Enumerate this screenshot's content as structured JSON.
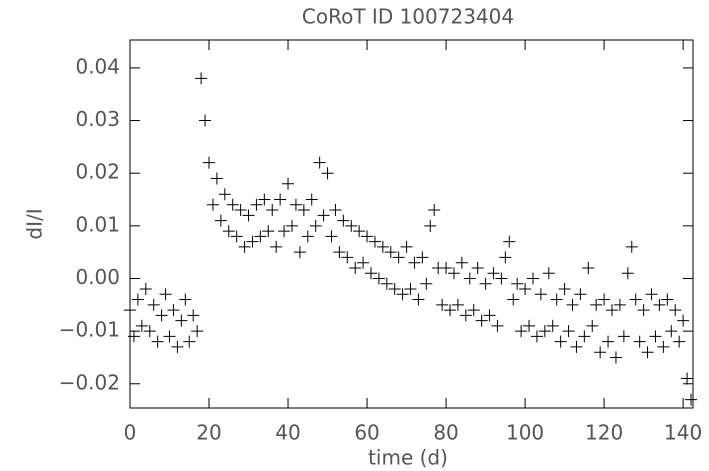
{
  "chart_data": {
    "type": "scatter",
    "title": "CoRoT ID 100723404",
    "x_label": "time (d)",
    "y_label": "dI/I",
    "color": "#000000",
    "x": [
      0,
      1,
      2,
      3,
      4,
      5,
      6,
      7,
      8,
      9,
      10,
      11,
      12,
      13,
      14,
      15,
      16,
      17,
      18,
      19,
      20,
      21,
      22,
      23,
      24,
      25,
      26,
      27,
      28,
      29,
      30,
      31,
      32,
      33,
      34,
      35,
      36,
      37,
      38,
      39,
      40,
      41,
      42,
      43,
      44,
      45,
      46,
      47,
      48,
      49,
      50,
      51,
      52,
      53,
      54,
      55,
      56,
      57,
      58,
      59,
      60,
      61,
      62,
      63,
      64,
      65,
      66,
      67,
      68,
      69,
      70,
      71,
      72,
      73,
      74,
      75,
      76,
      77,
      78,
      79,
      80,
      81,
      82,
      83,
      84,
      85,
      86,
      87,
      88,
      89,
      90,
      91,
      92,
      93,
      94,
      95,
      96,
      97,
      98,
      99,
      100,
      101,
      102,
      103,
      104,
      105,
      106,
      107,
      108,
      109,
      110,
      111,
      112,
      113,
      114,
      115,
      116,
      117,
      118,
      119,
      120,
      121,
      122,
      123,
      124,
      125,
      126,
      127,
      128,
      129,
      130,
      131,
      132,
      133,
      134,
      135,
      136,
      137,
      138,
      139,
      140,
      141,
      142
    ],
    "values": [
      -0.006,
      -0.011,
      -0.004,
      -0.009,
      -0.002,
      -0.01,
      -0.005,
      -0.012,
      -0.007,
      -0.003,
      -0.011,
      -0.006,
      -0.013,
      -0.008,
      -0.004,
      -0.012,
      -0.007,
      -0.01,
      0.038,
      0.03,
      0.022,
      0.014,
      0.019,
      0.011,
      0.016,
      0.009,
      0.014,
      0.008,
      0.013,
      0.006,
      0.012,
      0.007,
      0.014,
      0.008,
      0.015,
      0.009,
      0.013,
      0.006,
      0.015,
      0.009,
      0.018,
      0.01,
      0.014,
      0.005,
      0.013,
      0.008,
      0.015,
      0.01,
      0.022,
      0.012,
      0.02,
      0.008,
      0.013,
      0.005,
      0.011,
      0.004,
      0.01,
      0.002,
      0.009,
      0.003,
      0.008,
      0.001,
      0.007,
      0.0,
      0.006,
      -0.001,
      0.005,
      -0.002,
      0.004,
      -0.003,
      0.006,
      -0.002,
      0.003,
      -0.004,
      0.004,
      -0.001,
      0.01,
      0.013,
      0.002,
      -0.005,
      0.002,
      -0.006,
      0.001,
      -0.005,
      0.003,
      -0.007,
      0.0,
      -0.006,
      0.002,
      -0.008,
      -0.001,
      -0.007,
      0.001,
      -0.009,
      0.0,
      0.004,
      0.007,
      -0.004,
      -0.001,
      -0.01,
      -0.002,
      -0.009,
      0.0,
      -0.011,
      -0.003,
      -0.01,
      0.001,
      -0.009,
      -0.004,
      -0.012,
      -0.002,
      -0.01,
      -0.005,
      -0.013,
      -0.003,
      -0.011,
      0.002,
      -0.009,
      -0.005,
      -0.014,
      -0.004,
      -0.012,
      -0.006,
      -0.015,
      -0.005,
      -0.011,
      0.001,
      0.006,
      -0.004,
      -0.012,
      -0.006,
      -0.014,
      -0.003,
      -0.011,
      -0.005,
      -0.013,
      -0.004,
      -0.01,
      -0.006,
      -0.012,
      -0.008,
      -0.019,
      -0.023
    ],
    "xlim": [
      0,
      142.5
    ],
    "ylim": [
      -0.0246,
      0.0453
    ],
    "xticks": [
      0,
      20,
      40,
      60,
      80,
      100,
      120,
      140
    ],
    "yticks": [
      {
        "value": -0.02,
        "label": "−0.02"
      },
      {
        "value": -0.01,
        "label": "−0.01"
      },
      {
        "value": 0,
        "label": "0.00"
      },
      0.01,
      0.02,
      0.03,
      0.04
    ]
  }
}
